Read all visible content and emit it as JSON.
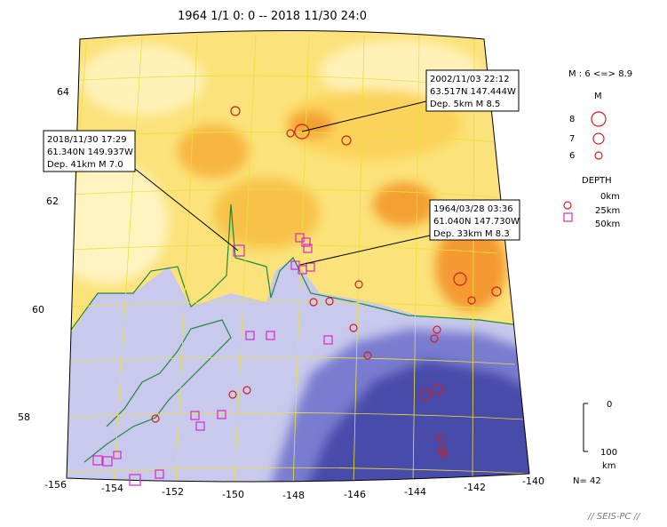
{
  "title": "1964 1/1 0: 0 -- 2018 11/30 24:0",
  "axis": {
    "lon_ticks": [
      "-156",
      "-154",
      "-152",
      "-150",
      "-148",
      "-146",
      "-144",
      "-142",
      "-140"
    ],
    "lat_ticks": [
      "64",
      "62",
      "60",
      "58"
    ]
  },
  "callouts": [
    {
      "line1": "2002/11/03 22:12",
      "line2": "63.517N  147.444W",
      "line3": "Dep. 5km   M 8.5"
    },
    {
      "line1": "2018/11/30 17:29",
      "line2": "61.340N  149.937W",
      "line3": "Dep. 41km   M 7.0"
    },
    {
      "line1": "1964/03/28 03:36",
      "line2": "61.040N  147.730W",
      "line3": "Dep. 33km   M 8.3"
    }
  ],
  "legend": {
    "mag_range": "M : 6 <=> 8.9",
    "mag_title": "M",
    "mag_items": [
      "8",
      "7",
      "6"
    ],
    "depth_title": "DEPTH",
    "depth_items": [
      "0km",
      "25km",
      "50km"
    ],
    "scale_top": "0",
    "scale_bottom": "100",
    "scale_unit": "km",
    "count": "N= 42"
  },
  "footer": "// SEIS-PC //",
  "colors": {
    "shallow": "#d21f1f",
    "deep": "#d629c8",
    "coast": "#1f8a3b",
    "grid": "#e8e23a"
  }
}
